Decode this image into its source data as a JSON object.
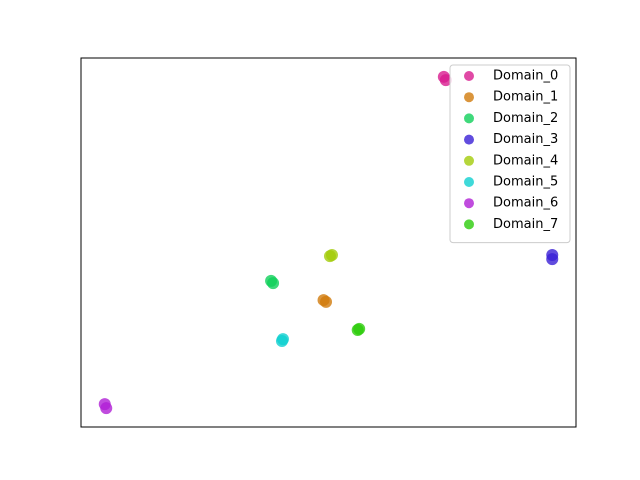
{
  "chart_data": {
    "type": "scatter",
    "xlim": [
      0,
      100
    ],
    "ylim": [
      0,
      100
    ],
    "legend": "upper right",
    "series": [
      {
        "name": "Domain_0",
        "color": "#d81b8f",
        "x": [
          73.3,
          73.7
        ],
        "y": [
          94.9,
          94.0
        ]
      },
      {
        "name": "Domain_1",
        "color": "#d17a0b",
        "x": [
          49.0,
          49.5
        ],
        "y": [
          34.4,
          33.9
        ]
      },
      {
        "name": "Domain_2",
        "color": "#0fcf5a",
        "x": [
          38.4,
          38.8
        ],
        "y": [
          39.6,
          39.0
        ]
      },
      {
        "name": "Domain_3",
        "color": "#3a1fd6",
        "x": [
          95.2,
          95.2
        ],
        "y": [
          46.6,
          45.5
        ]
      },
      {
        "name": "Domain_4",
        "color": "#a3cc0a",
        "x": [
          50.3,
          50.7
        ],
        "y": [
          46.3,
          46.6
        ]
      },
      {
        "name": "Domain_5",
        "color": "#0fcfcf",
        "x": [
          40.8,
          40.6
        ],
        "y": [
          23.8,
          23.3
        ]
      },
      {
        "name": "Domain_6",
        "color": "#b01fd6",
        "x": [
          4.8,
          5.1
        ],
        "y": [
          6.2,
          5.1
        ]
      },
      {
        "name": "Domain_7",
        "color": "#2ccc0a",
        "x": [
          55.9,
          56.2
        ],
        "y": [
          26.3,
          26.6
        ]
      }
    ]
  }
}
